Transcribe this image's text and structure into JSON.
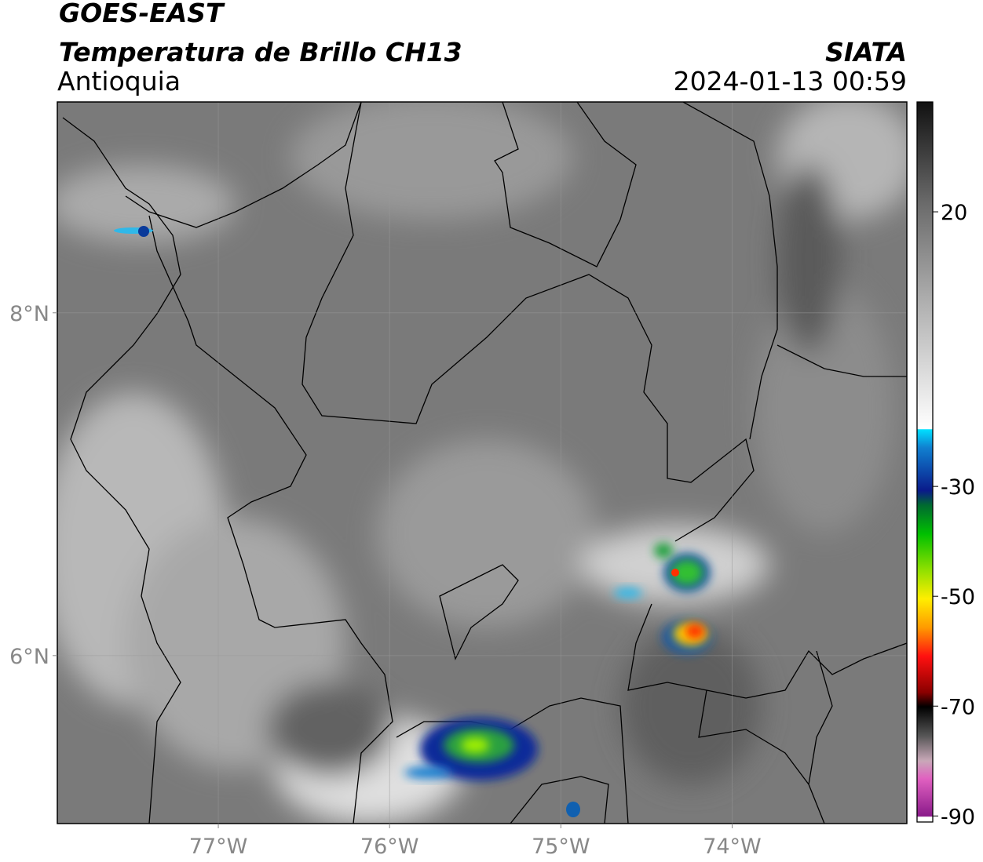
{
  "header": {
    "title": "GOES-EAST",
    "subtitle": "Temperatura de Brillo CH13",
    "region": "Antioquia",
    "source": "SIATA",
    "datetime": "2024-01-13 00:59"
  },
  "map": {
    "xlim": [
      -77.94,
      -72.98
    ],
    "ylim": [
      5.02,
      9.23
    ],
    "xticks": [
      {
        "value": -77,
        "label": "77°W"
      },
      {
        "value": -76,
        "label": "76°W"
      },
      {
        "value": -75,
        "label": "75°W"
      },
      {
        "value": -74,
        "label": "74°W"
      }
    ],
    "yticks": [
      {
        "value": 6,
        "label": "6°N"
      },
      {
        "value": 8,
        "label": "8°N"
      }
    ],
    "grid": true
  },
  "colorbar": {
    "lim": [
      -91.1,
      40
    ],
    "ticks": [
      -90,
      -70,
      -50,
      -30,
      20
    ]
  }
}
